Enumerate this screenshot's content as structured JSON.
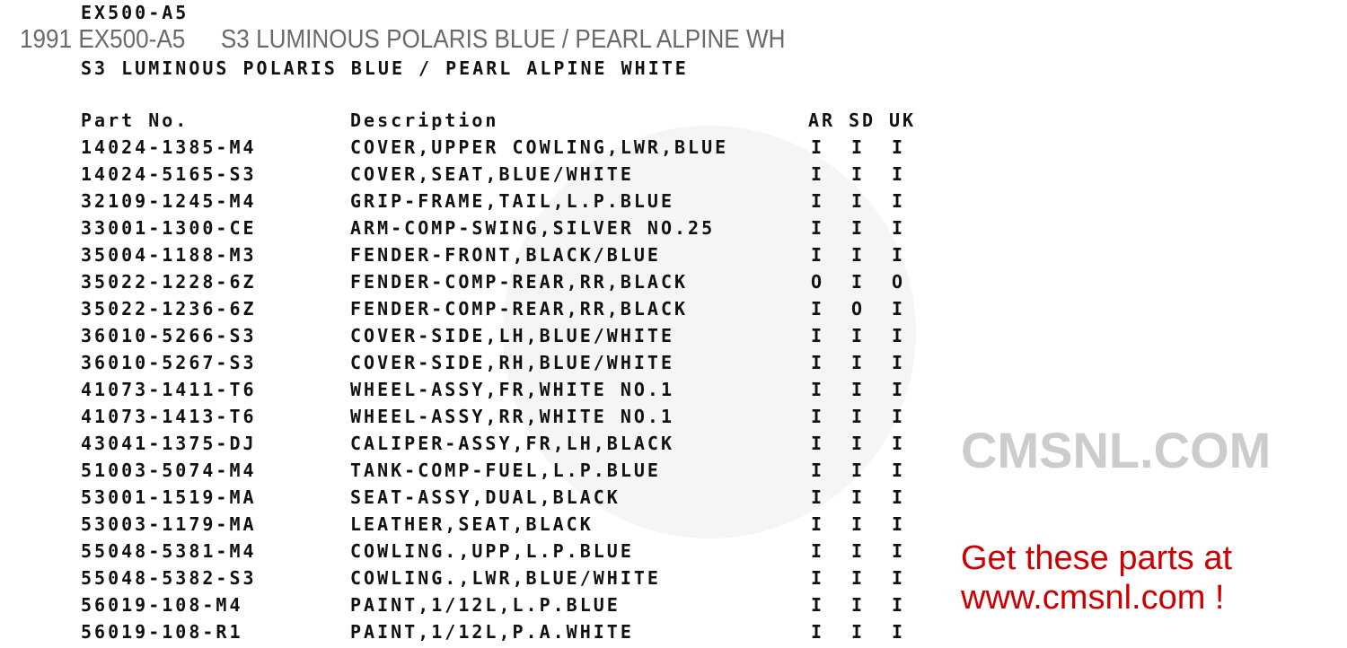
{
  "header": {
    "model_code": "EX500-A5",
    "overlay_year_model": "1991 EX500-A5",
    "overlay_color": "S3 LUMINOUS POLARIS BLUE / PEARL ALPINE WH",
    "color_title": "S3 LUMINOUS POLARIS BLUE / PEARL ALPINE WHITE"
  },
  "table": {
    "columns": [
      "Part No.",
      "Description",
      "AR",
      "SD",
      "UK"
    ],
    "rows": [
      [
        "14024-1385-M4",
        "COVER,UPPER COWLING,LWR,BLUE",
        "I",
        "I",
        "I"
      ],
      [
        "14024-5165-S3",
        "COVER,SEAT,BLUE/WHITE",
        "I",
        "I",
        "I"
      ],
      [
        "32109-1245-M4",
        "GRIP-FRAME,TAIL,L.P.BLUE",
        "I",
        "I",
        "I"
      ],
      [
        "33001-1300-CE",
        "ARM-COMP-SWING,SILVER NO.25",
        "I",
        "I",
        "I"
      ],
      [
        "35004-1188-M3",
        "FENDER-FRONT,BLACK/BLUE",
        "I",
        "I",
        "I"
      ],
      [
        "35022-1228-6Z",
        "FENDER-COMP-REAR,RR,BLACK",
        "O",
        "I",
        "O"
      ],
      [
        "35022-1236-6Z",
        "FENDER-COMP-REAR,RR,BLACK",
        "I",
        "O",
        "I"
      ],
      [
        "36010-5266-S3",
        "COVER-SIDE,LH,BLUE/WHITE",
        "I",
        "I",
        "I"
      ],
      [
        "36010-5267-S3",
        "COVER-SIDE,RH,BLUE/WHITE",
        "I",
        "I",
        "I"
      ],
      [
        "41073-1411-T6",
        "WHEEL-ASSY,FR,WHITE NO.1",
        "I",
        "I",
        "I"
      ],
      [
        "41073-1413-T6",
        "WHEEL-ASSY,RR,WHITE NO.1",
        "I",
        "I",
        "I"
      ],
      [
        "43041-1375-DJ",
        "CALIPER-ASSY,FR,LH,BLACK",
        "I",
        "I",
        "I"
      ],
      [
        "51003-5074-M4",
        "TANK-COMP-FUEL,L.P.BLUE",
        "I",
        "I",
        "I"
      ],
      [
        "53001-1519-MA",
        "SEAT-ASSY,DUAL,BLACK",
        "I",
        "I",
        "I"
      ],
      [
        "53003-1179-MA",
        "LEATHER,SEAT,BLACK",
        "I",
        "I",
        "I"
      ],
      [
        "55048-5381-M4",
        "COWLING.,UPP,L.P.BLUE",
        "I",
        "I",
        "I"
      ],
      [
        "55048-5382-S3",
        "COWLING.,LWR,BLUE/WHITE",
        "I",
        "I",
        "I"
      ],
      [
        "56019-108-M4",
        "PAINT,1/12L,L.P.BLUE",
        "I",
        "I",
        "I"
      ],
      [
        "56019-108-R1",
        "PAINT,1/12L,P.A.WHITE",
        "I",
        "I",
        "I"
      ]
    ]
  },
  "watermark": "CMSNL.COM",
  "promo": "Get these parts at www.cmsnl.com !",
  "colors": {
    "promo": "#cc0000",
    "overlay": "#6a6a6a"
  }
}
